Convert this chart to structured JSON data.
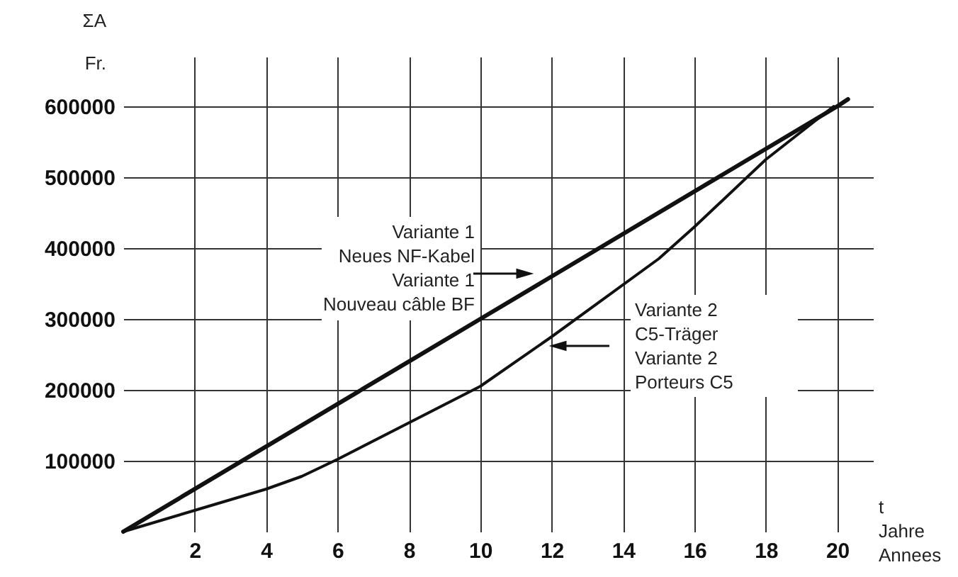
{
  "chart_data": {
    "type": "line",
    "xlabel": "t\nJahre\nAnnees",
    "ylabel": "ΣA\nFr.",
    "xlim": [
      0,
      21
    ],
    "ylim": [
      0,
      670000
    ],
    "xticks": [
      2,
      4,
      6,
      8,
      10,
      12,
      14,
      16,
      18,
      20
    ],
    "yticks": [
      100000,
      200000,
      300000,
      400000,
      500000,
      600000
    ],
    "grid": true,
    "marker": "none",
    "line_style": "solid",
    "series": [
      {
        "color": "#111111",
        "x": [
          0,
          10,
          20,
          20.3
        ],
        "values": [
          0,
          300000,
          600000,
          610000
        ]
      },
      {
        "color": "#111111",
        "x": [
          0,
          2,
          4,
          5,
          6,
          10,
          12,
          15,
          16,
          18,
          19.9
        ],
        "values": [
          0,
          30000,
          60000,
          78000,
          102000,
          205000,
          275000,
          385000,
          430000,
          525000,
          600000
        ]
      }
    ],
    "annotations": [
      "Variante 1\nNeues NF-Kabel\nVariante 1\nNouveau câble BF",
      "Variante 2\nC5-Träger\nVariante 2\nPorteurs C5"
    ]
  }
}
